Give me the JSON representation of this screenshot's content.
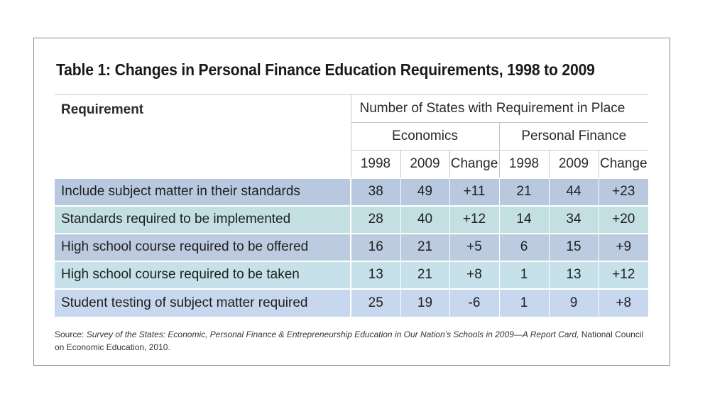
{
  "title": "Table 1:  Changes in Personal Finance Education Requirements, 1998 to 2009",
  "table": {
    "requirement_header": "Requirement",
    "group_header": "Number of States with Requirement in Place",
    "subgroups": [
      "Economics",
      "Personal Finance"
    ],
    "columns": [
      "1998",
      "2009",
      "Change",
      "1998",
      "2009",
      "Change"
    ],
    "rows": [
      {
        "label": "Include subject matter in their standards",
        "values": [
          "38",
          "49",
          "+11",
          "21",
          "44",
          "+23"
        ]
      },
      {
        "label": "Standards required to be implemented",
        "values": [
          "28",
          "40",
          "+12",
          "14",
          "34",
          "+20"
        ]
      },
      {
        "label": "High school course required to be offered",
        "values": [
          "16",
          "21",
          "+5",
          "6",
          "15",
          "+9"
        ]
      },
      {
        "label": "High school course required to be taken",
        "values": [
          "13",
          "21",
          "+8",
          "1",
          "13",
          "+12"
        ]
      },
      {
        "label": "Student testing of subject matter required",
        "values": [
          "25",
          "19",
          "-6",
          "1",
          "9",
          "+8"
        ]
      }
    ],
    "row_colors": [
      "#b8c8de",
      "#c3dfe2",
      "#bdcbe0",
      "#c6e1ea",
      "#c7d7ee"
    ]
  },
  "source": {
    "prefix": "Source: ",
    "italic": "Survey of the States: Economic, Personal Finance & Entrepreneurship Education in Our Nation’s Schools in 2009—A Report Card,",
    "suffix": " National Council on Economic Education, 2010."
  }
}
